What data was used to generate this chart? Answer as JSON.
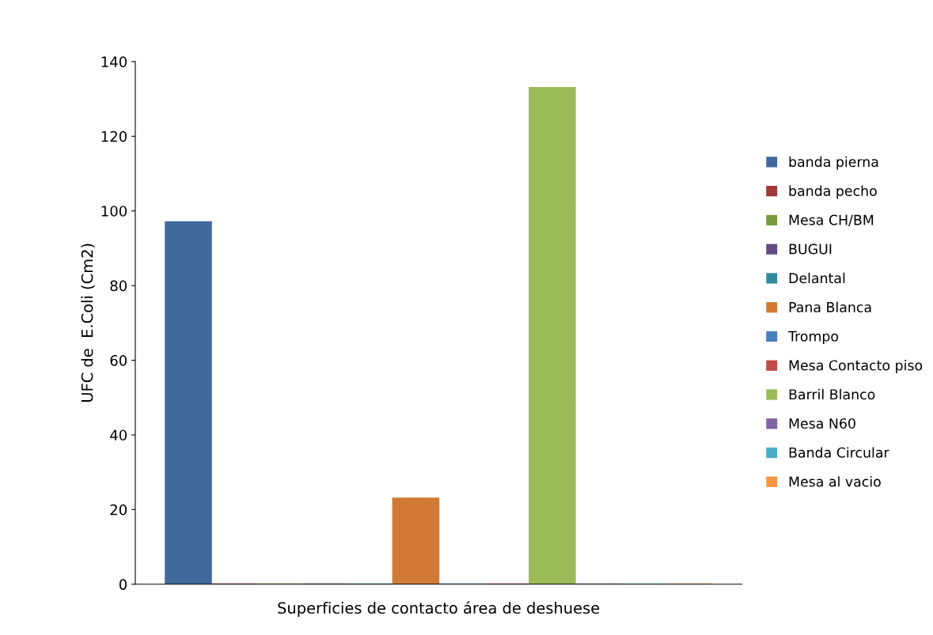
{
  "chart_data": {
    "type": "bar",
    "xlabel": "Superficies de contacto área de deshuese",
    "ylabel": "UFC de  E.Coli (Cm2)",
    "categories": [
      null
    ],
    "series": [
      {
        "name": "banda pierna",
        "color": "#416a9c",
        "values": [
          97
        ]
      },
      {
        "name": "banda pecho",
        "color": "#9b3b38",
        "values": [
          0
        ]
      },
      {
        "name": "Mesa CH/BM",
        "color": "#7b9a3d",
        "values": [
          0
        ]
      },
      {
        "name": "BUGUI",
        "color": "#634b82",
        "values": [
          0
        ]
      },
      {
        "name": "Delantal",
        "color": "#338a9e",
        "values": [
          0
        ]
      },
      {
        "name": "Pana Blanca",
        "color": "#d07a35",
        "values": [
          23
        ]
      },
      {
        "name": "Trompo",
        "color": "#4a7ebb",
        "values": [
          0
        ]
      },
      {
        "name": "Mesa Contacto piso",
        "color": "#be4b48",
        "values": [
          0
        ]
      },
      {
        "name": "Barril Blanco",
        "color": "#9bbb59",
        "values": [
          133
        ]
      },
      {
        "name": "Mesa N60",
        "color": "#8064a2",
        "values": [
          0
        ]
      },
      {
        "name": "Banda Circular",
        "color": "#4bacc6",
        "values": [
          0
        ]
      },
      {
        "name": "Mesa al vacio",
        "color": "#f79646",
        "values": [
          0
        ]
      }
    ],
    "ylim": [
      0,
      140
    ],
    "yticks": [
      0,
      20,
      40,
      60,
      80,
      100,
      120,
      140
    ],
    "grid": false,
    "legend": "right"
  }
}
